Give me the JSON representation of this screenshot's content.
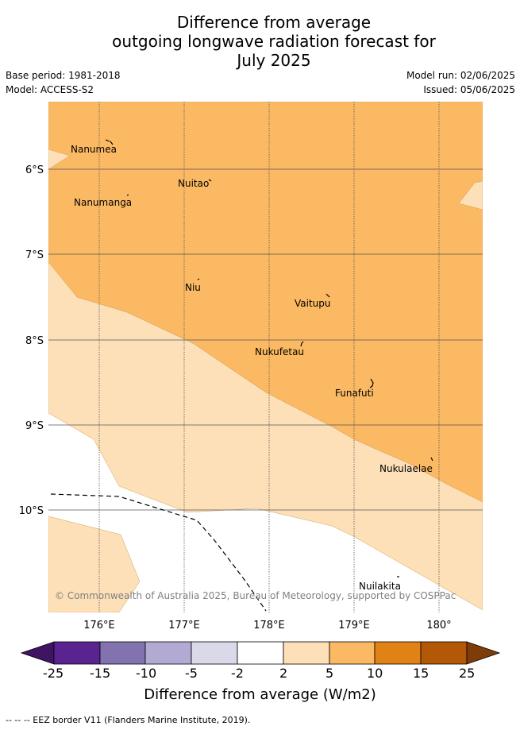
{
  "title": {
    "line1": "Difference from average",
    "line2": "outgoing longwave radiation forecast for",
    "line3": "July 2025"
  },
  "meta": {
    "base_period": "Base period: 1981-2018",
    "model": "Model: ACCESS-S2",
    "model_run": "Model run: 02/06/2025",
    "issued": "Issued: 05/06/2025"
  },
  "map": {
    "lat_labels": [
      "6°S",
      "7°S",
      "8°S",
      "9°S",
      "10°S"
    ],
    "lon_labels": [
      "176°E",
      "177°E",
      "178°E",
      "179°E",
      "180°"
    ],
    "places": [
      "Nanumea",
      "Nuitao",
      "Nanumanga",
      "Niu",
      "Vaitupu",
      "Nukufetau",
      "Funafuti",
      "Nukulaelae",
      "Nuilakita"
    ],
    "copyright": "© Commonwealth of Australia 2025, Bureau of Meteorology, supported by COSPPac",
    "colors": {
      "band_2_5": "#fde0b7",
      "band_5_10": "#fbb963",
      "eez_border": "#000000"
    }
  },
  "colorbar": {
    "ticks": [
      "-25",
      "-15",
      "-10",
      "-5",
      "-2",
      "2",
      "5",
      "10",
      "15",
      "25"
    ],
    "colors": [
      "#3e1463",
      "#5a2490",
      "#8272ae",
      "#b2aad2",
      "#d9d9ea",
      "#ffffff",
      "#fde0b7",
      "#fbb963",
      "#e08214",
      "#b35806",
      "#7f3b08"
    ],
    "title": "Difference from average (W/m2)"
  },
  "footer": "-- -- -- EEZ border V11 (Flanders Marine Institute, 2019)."
}
